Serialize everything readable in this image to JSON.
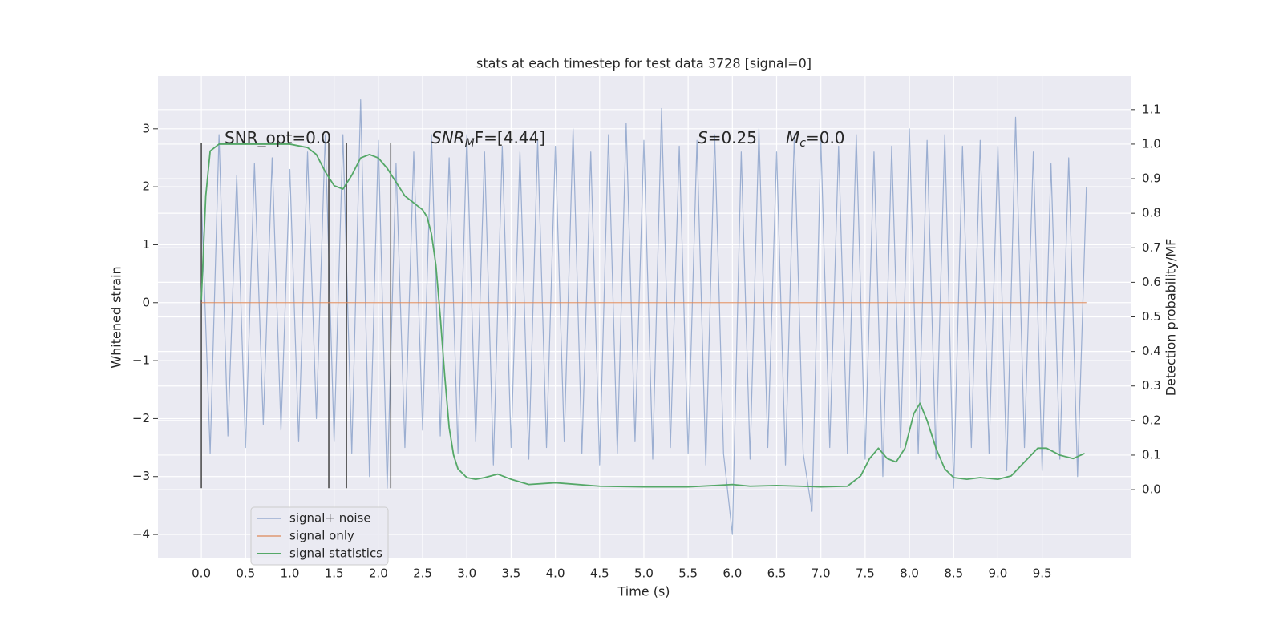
{
  "chart_data": {
    "type": "line",
    "title": "stats at each timestep for test data 3728 [signal=0]",
    "xlabel": "Time (s)",
    "ylabel": "Whitened strain",
    "y2label": "Detection probability/MF",
    "xlim": [
      -0.49,
      10.5
    ],
    "ylim": [
      -4.4,
      3.91
    ],
    "y2lim": [
      -0.197,
      1.197
    ],
    "xticks": [
      {
        "value": 0,
        "label": "0.0"
      },
      {
        "value": 0.5,
        "label": "0.5"
      },
      {
        "value": 1,
        "label": "1.0"
      },
      {
        "value": 1.5,
        "label": "1.5"
      },
      {
        "value": 2,
        "label": "2.0"
      },
      {
        "value": 2.5,
        "label": "2.5"
      },
      {
        "value": 3,
        "label": "3.0"
      },
      {
        "value": 3.5,
        "label": "3.5"
      },
      {
        "value": 4,
        "label": "4.0"
      },
      {
        "value": 4.5,
        "label": "4.5"
      },
      {
        "value": 5,
        "label": "5.0"
      },
      {
        "value": 5.5,
        "label": "5.5"
      },
      {
        "value": 6,
        "label": "6.0"
      },
      {
        "value": 6.5,
        "label": "6.5"
      },
      {
        "value": 7,
        "label": "7.0"
      },
      {
        "value": 7.5,
        "label": "7.5"
      },
      {
        "value": 8,
        "label": "8.0"
      },
      {
        "value": 8.5,
        "label": "8.5"
      },
      {
        "value": 9,
        "label": "9.0"
      },
      {
        "value": 9.5,
        "label": "9.5"
      }
    ],
    "yticks": [
      {
        "value": -4,
        "label": "−4"
      },
      {
        "value": -3,
        "label": "−3"
      },
      {
        "value": -2,
        "label": "−2"
      },
      {
        "value": -1,
        "label": "−1"
      },
      0,
      1,
      2,
      3
    ],
    "y2ticks": [
      {
        "value": 0,
        "label": "0.0"
      },
      {
        "value": 0.1,
        "label": "0.1"
      },
      {
        "value": 0.2,
        "label": "0.2"
      },
      {
        "value": 0.3,
        "label": "0.3"
      },
      {
        "value": 0.4,
        "label": "0.4"
      },
      {
        "value": 0.5,
        "label": "0.5"
      },
      {
        "value": 0.6,
        "label": "0.6"
      },
      {
        "value": 0.7,
        "label": "0.7"
      },
      {
        "value": 0.8,
        "label": "0.8"
      },
      {
        "value": 0.9,
        "label": "0.9"
      },
      {
        "value": 1,
        "label": "1.0"
      },
      {
        "value": 1.1,
        "label": "1.1"
      }
    ],
    "grid": true,
    "legend": "lower left",
    "annotations": [
      {
        "base": "SNR_opt=0.0"
      },
      {
        "base": "SNR",
        "sub": "M",
        "tail": "F=[4.44]"
      },
      {
        "base": "S",
        "tail": "=0.25"
      },
      {
        "base": "M",
        "sub": "c",
        "tail": "=0.0"
      }
    ],
    "vlines": [
      0,
      1.44,
      1.64,
      2.14
    ],
    "vline_color": "#444444",
    "series": [
      {
        "name": "signal+ noise",
        "color": "#4c72b0",
        "x": [
          0,
          0.1,
          0.2,
          0.3,
          0.4,
          0.5,
          0.6,
          0.7,
          0.8,
          0.9,
          1,
          1.1,
          1.2,
          1.3,
          1.4,
          1.5,
          1.6,
          1.7,
          1.8,
          1.9,
          2,
          2.1,
          2.2,
          2.3,
          2.4,
          2.5,
          2.6,
          2.7,
          2.8,
          2.9,
          3,
          3.1,
          3.2,
          3.3,
          3.4,
          3.5,
          3.6,
          3.7,
          3.8,
          3.9,
          4,
          4.1,
          4.2,
          4.3,
          4.4,
          4.5,
          4.6,
          4.7,
          4.8,
          4.9,
          5,
          5.1,
          5.2,
          5.3,
          5.4,
          5.5,
          5.6,
          5.7,
          5.8,
          5.9,
          6,
          6.1,
          6.2,
          6.3,
          6.4,
          6.5,
          6.6,
          6.7,
          6.8,
          6.9,
          7,
          7.1,
          7.2,
          7.3,
          7.4,
          7.5,
          7.6,
          7.7,
          7.8,
          7.9,
          8,
          8.1,
          8.2,
          8.3,
          8.4,
          8.5,
          8.6,
          8.7,
          8.8,
          8.9,
          9,
          9.1,
          9.2,
          9.3,
          9.4,
          9.5,
          9.6,
          9.7,
          9.8,
          9.9,
          10
        ],
        "values": [
          1.8,
          -2.6,
          2.9,
          -2.3,
          2.2,
          -2.5,
          2.4,
          -2.1,
          2.5,
          -2.2,
          2.3,
          -2.4,
          2.6,
          -2.0,
          2.9,
          -2.4,
          2.9,
          -2.6,
          3.5,
          -3.0,
          2.8,
          -3.2,
          2.4,
          -2.5,
          2.6,
          -2.2,
          2.9,
          -2.3,
          2.5,
          -2.6,
          2.9,
          -2.4,
          2.6,
          -2.8,
          2.7,
          -2.5,
          2.6,
          -2.7,
          2.8,
          -2.5,
          2.7,
          -2.4,
          3.0,
          -2.6,
          2.6,
          -2.8,
          2.9,
          -2.6,
          3.1,
          -2.4,
          2.8,
          -2.7,
          3.35,
          -2.5,
          2.7,
          -2.6,
          2.8,
          -2.8,
          2.9,
          -2.6,
          -4.0,
          2.6,
          -2.7,
          3.0,
          -2.5,
          2.6,
          -2.8,
          2.9,
          -2.6,
          -3.6,
          2.8,
          -2.5,
          2.7,
          -2.6,
          2.9,
          -2.7,
          2.6,
          -3.0,
          2.7,
          -2.5,
          3.0,
          -2.6,
          2.8,
          -2.7,
          2.9,
          -3.2,
          2.7,
          -2.5,
          2.8,
          -2.6,
          2.7,
          -2.9,
          3.2,
          -2.5,
          2.6,
          -2.9,
          2.4,
          -2.7,
          2.5,
          -3.0,
          2.0
        ]
      },
      {
        "name": "signal only",
        "color": "#dd8452",
        "x": [
          0,
          10
        ],
        "values": [
          0,
          0
        ]
      },
      {
        "name": "signal statistics",
        "color": "#55a868",
        "axis": "y2",
        "x": [
          0,
          0.05,
          0.1,
          0.2,
          0.5,
          1.0,
          1.2,
          1.3,
          1.4,
          1.5,
          1.6,
          1.7,
          1.8,
          1.9,
          2.0,
          2.1,
          2.2,
          2.3,
          2.4,
          2.5,
          2.55,
          2.6,
          2.65,
          2.7,
          2.75,
          2.8,
          2.85,
          2.9,
          3.0,
          3.1,
          3.2,
          3.35,
          3.5,
          3.7,
          4.0,
          4.5,
          5.0,
          5.5,
          5.8,
          6.0,
          6.2,
          6.5,
          7.0,
          7.3,
          7.45,
          7.55,
          7.65,
          7.75,
          7.85,
          7.95,
          8.05,
          8.12,
          8.2,
          8.3,
          8.4,
          8.5,
          8.65,
          8.8,
          9.0,
          9.15,
          9.3,
          9.45,
          9.55,
          9.7,
          9.85,
          9.98
        ],
        "values": [
          0.55,
          0.85,
          0.98,
          1.0,
          1.0,
          1.0,
          0.99,
          0.97,
          0.92,
          0.88,
          0.87,
          0.91,
          0.96,
          0.97,
          0.96,
          0.93,
          0.89,
          0.85,
          0.83,
          0.81,
          0.79,
          0.74,
          0.65,
          0.5,
          0.33,
          0.18,
          0.1,
          0.06,
          0.035,
          0.03,
          0.035,
          0.045,
          0.03,
          0.015,
          0.02,
          0.01,
          0.008,
          0.008,
          0.012,
          0.015,
          0.01,
          0.012,
          0.008,
          0.01,
          0.04,
          0.09,
          0.12,
          0.09,
          0.08,
          0.12,
          0.22,
          0.25,
          0.2,
          0.12,
          0.06,
          0.035,
          0.03,
          0.035,
          0.03,
          0.04,
          0.08,
          0.12,
          0.12,
          0.1,
          0.09,
          0.105
        ]
      }
    ]
  }
}
